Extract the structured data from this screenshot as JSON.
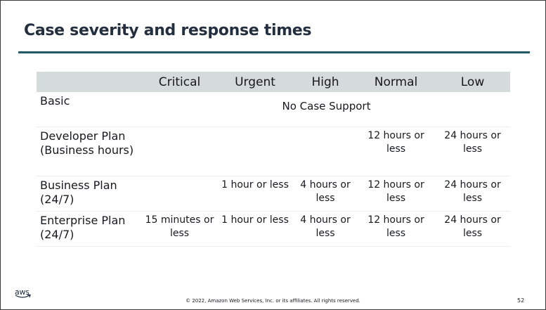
{
  "slide": {
    "title": "Case severity and response times",
    "footer": "© 2022, Amazon Web Services, Inc. or its affiliates. All rights reserved.",
    "page_number": "52",
    "logo_text": "aws"
  },
  "table": {
    "headers": [
      "",
      "Critical",
      "Urgent",
      "High",
      "Normal",
      "Low"
    ],
    "rows": [
      {
        "plan": "Basic",
        "merged": "No Case Support"
      },
      {
        "plan": "Developer Plan (Business hours)",
        "cells": [
          "",
          "",
          "",
          "12 hours or less",
          "24 hours or less"
        ]
      },
      {
        "plan": "Business Plan (24/7)",
        "cells": [
          "",
          "1 hour or less",
          "4 hours or less",
          "12 hours or less",
          "24 hours or less"
        ]
      },
      {
        "plan": "Enterprise Plan (24/7)",
        "cells": [
          "15 minutes or less",
          "1 hour or less",
          "4 hours or less",
          "12 hours or less",
          "24 hours or less"
        ]
      }
    ]
  }
}
